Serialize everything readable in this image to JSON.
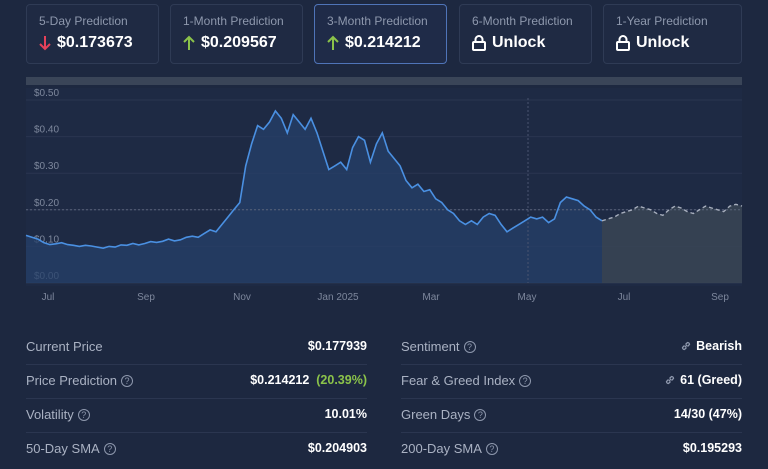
{
  "cards": [
    {
      "label": "5-Day Prediction",
      "value": "$0.173673",
      "icon": "arrow-down-icon",
      "color": "#e5415a"
    },
    {
      "label": "1-Month Prediction",
      "value": "$0.209567",
      "icon": "arrow-up-icon",
      "color": "#8bc34a"
    },
    {
      "label": "3-Month Prediction",
      "value": "$0.214212",
      "icon": "arrow-up-icon",
      "color": "#8bc34a"
    },
    {
      "label": "6-Month Prediction",
      "value": "Unlock",
      "icon": "lock-icon",
      "color": "#ffffff"
    },
    {
      "label": "1-Year Prediction",
      "value": "Unlock",
      "icon": "lock-icon",
      "color": "#ffffff"
    }
  ],
  "chart_data": {
    "type": "line",
    "yticks": [
      "$0.50",
      "$0.40",
      "$0.30",
      "$0.20",
      "$0.10",
      "$0.00"
    ],
    "ylim": [
      0,
      0.5
    ],
    "xticks": [
      "Jul",
      "Sep",
      "Nov",
      "Jan 2025",
      "Mar",
      "May",
      "Jul",
      "Sep"
    ],
    "grid": true,
    "current_price_line": 0.2,
    "series": [
      {
        "style": "solid",
        "color": "#4a90e2",
        "values": [
          0.13,
          0.125,
          0.12,
          0.11,
          0.105,
          0.107,
          0.11,
          0.105,
          0.103,
          0.1,
          0.103,
          0.101,
          0.098,
          0.095,
          0.1,
          0.098,
          0.104,
          0.103,
          0.108,
          0.104,
          0.108,
          0.113,
          0.111,
          0.114,
          0.12,
          0.115,
          0.118,
          0.125,
          0.128,
          0.125,
          0.135,
          0.145,
          0.14,
          0.16,
          0.18,
          0.2,
          0.22,
          0.32,
          0.38,
          0.43,
          0.42,
          0.44,
          0.47,
          0.45,
          0.41,
          0.46,
          0.44,
          0.42,
          0.45,
          0.41,
          0.36,
          0.31,
          0.32,
          0.33,
          0.31,
          0.37,
          0.4,
          0.39,
          0.33,
          0.38,
          0.41,
          0.36,
          0.34,
          0.32,
          0.28,
          0.26,
          0.27,
          0.25,
          0.255,
          0.23,
          0.22,
          0.2,
          0.19,
          0.17,
          0.16,
          0.17,
          0.16,
          0.18,
          0.19,
          0.185,
          0.16,
          0.14,
          0.15,
          0.16,
          0.17,
          0.18,
          0.175,
          0.18,
          0.165,
          0.175,
          0.22,
          0.235,
          0.23,
          0.225,
          0.21,
          0.2,
          0.18,
          0.17
        ]
      },
      {
        "style": "dashed",
        "color": "#a7aebd",
        "values": [
          0.17,
          0.175,
          0.18,
          0.19,
          0.195,
          0.2,
          0.21,
          0.205,
          0.2,
          0.19,
          0.185,
          0.2,
          0.21,
          0.205,
          0.195,
          0.19,
          0.2,
          0.21,
          0.205,
          0.2,
          0.195,
          0.21,
          0.215,
          0.21
        ]
      }
    ]
  },
  "stats": {
    "left": [
      {
        "label": "Current Price",
        "value": "$0.177939",
        "extra": "",
        "help": false
      },
      {
        "label": "Price Prediction",
        "value": "$0.214212",
        "extra": "(20.39%)",
        "help": true
      },
      {
        "label": "Volatility",
        "value": "10.01%",
        "extra": "",
        "help": true
      },
      {
        "label": "50-Day SMA",
        "value": "$0.204903",
        "extra": "",
        "help": true
      }
    ],
    "right": [
      {
        "label": "Sentiment",
        "value": "Bearish",
        "help": true,
        "color": "#e5415a",
        "link": true
      },
      {
        "label": "Fear & Greed Index",
        "value": "61 (Greed)",
        "help": true,
        "color": "#8bc34a",
        "link": true
      },
      {
        "label": "Green Days",
        "value": "14/30 (47%)",
        "help": true,
        "color": "#ffffff",
        "link": false
      },
      {
        "label": "200-Day SMA",
        "value": "$0.195293",
        "help": true,
        "color": "#ffffff",
        "link": false
      }
    ]
  }
}
